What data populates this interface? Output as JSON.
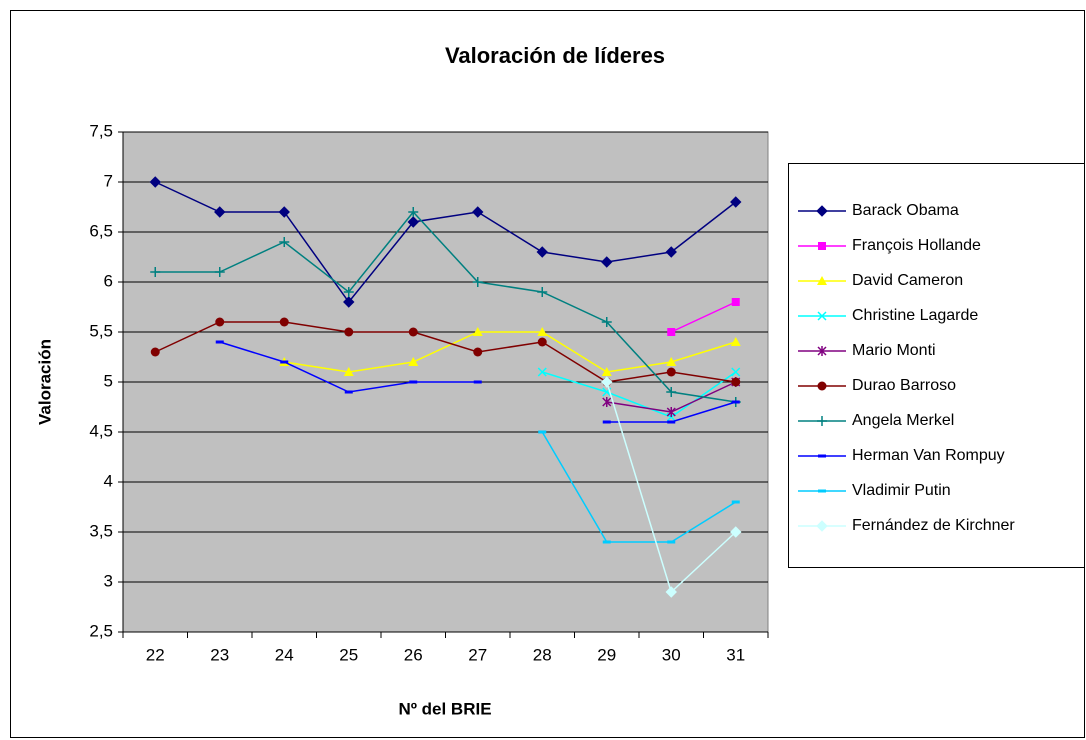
{
  "chart_data": {
    "type": "line",
    "title": "Valoración de líderes",
    "x_label": "Nº del BRIE",
    "y_label": "Valoración",
    "categories": [
      "22",
      "23",
      "24",
      "25",
      "26",
      "27",
      "28",
      "29",
      "30",
      "31"
    ],
    "ylim": [
      2.5,
      7.5
    ],
    "yticks": [
      {
        "value": 2.5,
        "label": "2,5"
      },
      3,
      {
        "value": 3.5,
        "label": "3,5"
      },
      4,
      {
        "value": 4.5,
        "label": "4,5"
      },
      5,
      {
        "value": 5.5,
        "label": "5,5"
      },
      6,
      {
        "value": 6.5,
        "label": "6,5"
      },
      7,
      {
        "value": 7.5,
        "label": "7,5"
      }
    ],
    "grid": true,
    "legend": "right",
    "series": [
      {
        "name": "Barack Obama",
        "color": "#000080",
        "marker": "diamond",
        "values": [
          7,
          6.7,
          6.7,
          5.8,
          6.6,
          6.7,
          6.3,
          6.2,
          6.3,
          6.8
        ]
      },
      {
        "name": "François Hollande",
        "color": "#FF00FF",
        "marker": "square",
        "values": [
          null,
          null,
          null,
          null,
          null,
          null,
          null,
          null,
          5.5,
          5.8
        ]
      },
      {
        "name": "David Cameron",
        "color": "#FFFF00",
        "marker": "triangle",
        "values": [
          null,
          null,
          5.2,
          5.1,
          5.2,
          5.5,
          5.5,
          5.1,
          5.2,
          5.4
        ]
      },
      {
        "name": "Christine Lagarde",
        "color": "#00FFFF",
        "marker": "x",
        "values": [
          null,
          null,
          null,
          null,
          null,
          null,
          5.1,
          4.9,
          4.65,
          5.1
        ]
      },
      {
        "name": "Mario Monti",
        "color": "#800080",
        "marker": "star",
        "values": [
          null,
          null,
          null,
          null,
          null,
          null,
          null,
          4.8,
          4.7,
          5.0
        ]
      },
      {
        "name": "Durao Barroso",
        "color": "#800000",
        "marker": "circle",
        "values": [
          5.3,
          5.6,
          5.6,
          5.5,
          5.5,
          5.3,
          5.4,
          5.0,
          5.1,
          5.0
        ]
      },
      {
        "name": "Angela Merkel",
        "color": "#008080",
        "marker": "plus",
        "values": [
          6.1,
          6.1,
          6.4,
          5.9,
          6.7,
          6.0,
          5.9,
          5.6,
          4.9,
          4.8
        ]
      },
      {
        "name": "Herman Van Rompuy",
        "color": "#0000FF",
        "marker": "dash",
        "values": [
          null,
          5.4,
          5.2,
          4.9,
          5.0,
          5.0,
          null,
          4.6,
          4.6,
          4.8
        ]
      },
      {
        "name": "Vladimir Putin",
        "color": "#00CCFF",
        "marker": "dash",
        "values": [
          null,
          null,
          null,
          null,
          null,
          null,
          4.5,
          3.4,
          3.4,
          3.8
        ]
      },
      {
        "name": "Fernández de Kirchner",
        "color": "#CCFFFF",
        "marker": "diamond",
        "values": [
          null,
          null,
          null,
          null,
          null,
          null,
          null,
          5.0,
          2.9,
          3.5
        ]
      }
    ]
  }
}
